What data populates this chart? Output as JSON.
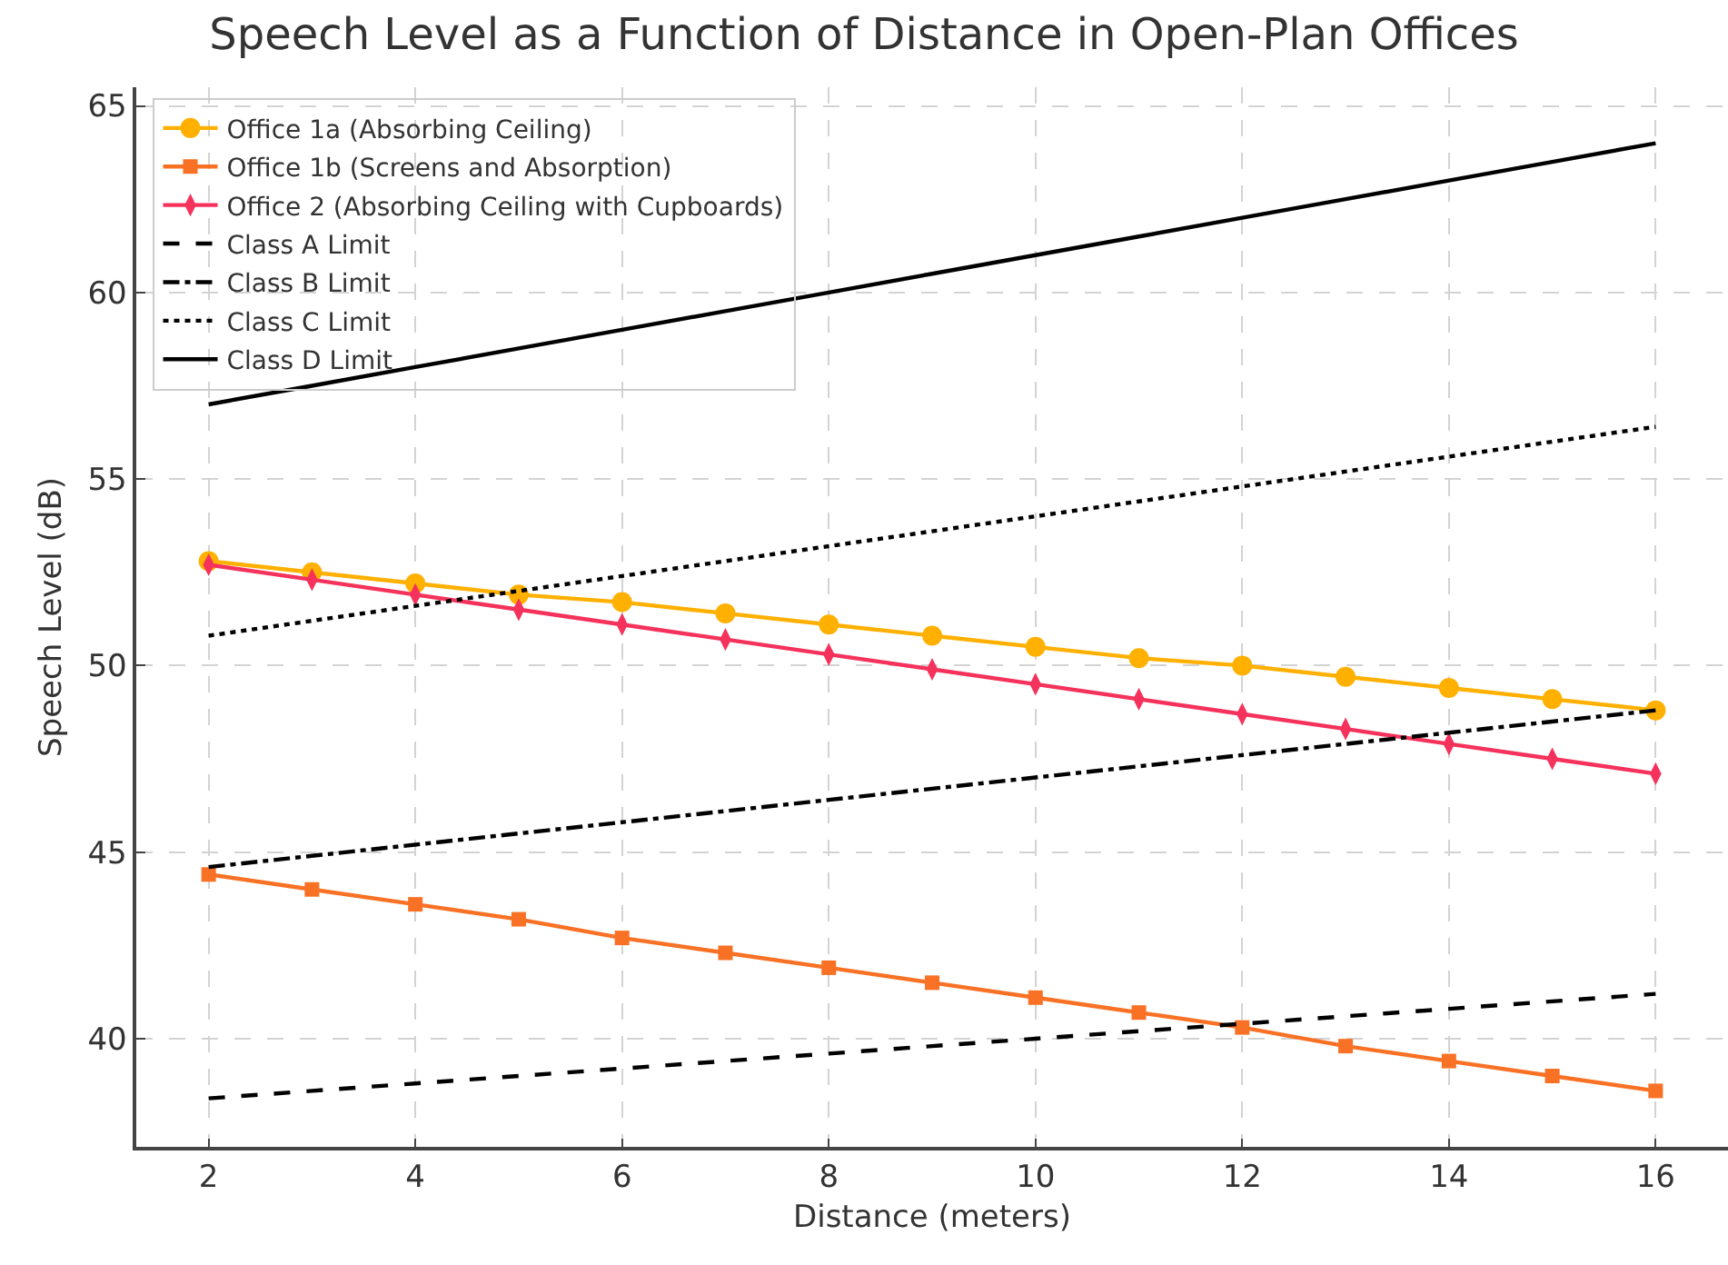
{
  "chart_data": {
    "type": "line",
    "title": "Speech Level as a Function of Distance in Open-Plan Offices",
    "xlabel": "Distance (meters)",
    "ylabel": "Speech Level (dB)",
    "x": [
      2,
      3,
      4,
      5,
      6,
      7,
      8,
      9,
      10,
      11,
      12,
      13,
      14,
      15,
      16
    ],
    "series": [
      {
        "name": "Office 1a (Absorbing Ceiling)",
        "color": "#ffb000",
        "marker": "circle",
        "line_style": "solid",
        "values": [
          52.8,
          52.5,
          52.2,
          51.9,
          51.7,
          51.4,
          51.1,
          50.8,
          50.5,
          50.2,
          50.0,
          49.7,
          49.4,
          49.1,
          48.8
        ]
      },
      {
        "name": "Office 1b (Screens and Absorption)",
        "color": "#f97124",
        "marker": "square",
        "line_style": "solid",
        "values": [
          44.4,
          44.0,
          43.6,
          43.2,
          42.7,
          42.3,
          41.9,
          41.5,
          41.1,
          40.7,
          40.3,
          39.8,
          39.4,
          39.0,
          38.6
        ]
      },
      {
        "name": "Office 2 (Absorbing Ceiling with Cupboards)",
        "color": "#f5325b",
        "marker": "diamond",
        "line_style": "solid",
        "values": [
          52.7,
          52.3,
          51.9,
          51.5,
          51.1,
          50.7,
          50.3,
          49.9,
          49.5,
          49.1,
          48.7,
          48.3,
          47.9,
          47.5,
          47.1
        ]
      },
      {
        "name": "Class A Limit",
        "color": "#000000",
        "marker": "none",
        "line_style": "dashed",
        "values": [
          38.4,
          38.6,
          38.8,
          39.0,
          39.2,
          39.4,
          39.6,
          39.8,
          40.0,
          40.2,
          40.4,
          40.6,
          40.8,
          41.0,
          41.2
        ]
      },
      {
        "name": "Class B Limit",
        "color": "#000000",
        "marker": "none",
        "line_style": "dashdot",
        "values": [
          44.6,
          44.9,
          45.2,
          45.5,
          45.8,
          46.1,
          46.4,
          46.7,
          47.0,
          47.3,
          47.6,
          47.9,
          48.2,
          48.5,
          48.8
        ]
      },
      {
        "name": "Class C Limit",
        "color": "#000000",
        "marker": "none",
        "line_style": "dotted",
        "values": [
          50.8,
          51.2,
          51.6,
          52.0,
          52.4,
          52.8,
          53.2,
          53.6,
          54.0,
          54.4,
          54.8,
          55.2,
          55.6,
          56.0,
          56.4
        ]
      },
      {
        "name": "Class D Limit",
        "color": "#000000",
        "marker": "none",
        "line_style": "solid",
        "values": [
          57.0,
          57.5,
          58.0,
          58.5,
          59.0,
          59.5,
          60.0,
          60.5,
          61.0,
          61.5,
          62.0,
          62.5,
          63.0,
          63.5,
          64.0
        ]
      }
    ],
    "xlim": [
      1.3,
      16.7
    ],
    "ylim": [
      37.1,
      65.5
    ],
    "xticks": [
      2,
      4,
      6,
      8,
      10,
      12,
      14,
      16
    ],
    "yticks": [
      40,
      45,
      50,
      55,
      60,
      65
    ],
    "grid": true,
    "legend": "top left"
  }
}
